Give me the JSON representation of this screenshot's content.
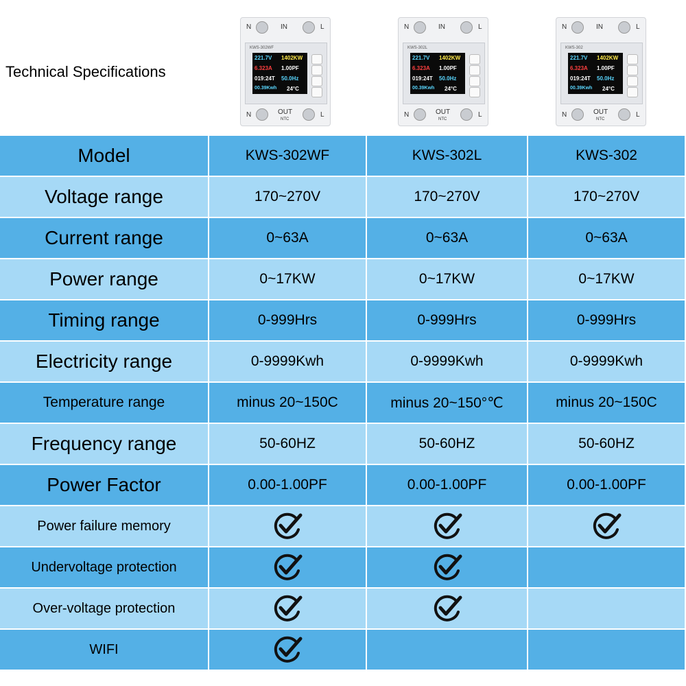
{
  "header": {
    "title": "Technical Specifications"
  },
  "devices": [
    {
      "model": "KWS-302WF"
    },
    {
      "model": "KWS-302L"
    },
    {
      "model": "KWS-302"
    }
  ],
  "device_labels": {
    "n": "N",
    "in": "IN",
    "l": "L",
    "out": "OUT",
    "ntc": "NTC"
  },
  "device_display": {
    "voltage": "221.7V",
    "power": "1402KW",
    "current": "6.323A",
    "pf": "1.00PF",
    "time": "019:24T",
    "freq": "50.0Hz",
    "energy": "00.39Kwh",
    "temp": "24°C"
  },
  "table": {
    "rows": [
      {
        "label": "Model",
        "cells": [
          "KWS-302WF",
          "KWS-302L",
          "KWS-302"
        ]
      },
      {
        "label": "Voltage range",
        "cells": [
          "170~270V",
          "170~270V",
          "170~270V"
        ]
      },
      {
        "label": "Current range",
        "cells": [
          "0~63A",
          "0~63A",
          "0~63A"
        ]
      },
      {
        "label": "Power range",
        "cells": [
          "0~17KW",
          "0~17KW",
          "0~17KW"
        ]
      },
      {
        "label": "Timing range",
        "cells": [
          "0-999Hrs",
          "0-999Hrs",
          "0-999Hrs"
        ]
      },
      {
        "label": "Electricity range",
        "cells": [
          "0-9999Kwh",
          "0-9999Kwh",
          "0-9999Kwh"
        ]
      },
      {
        "label": "Temperature range",
        "cells": [
          "minus 20~150C",
          "minus 20~150°℃",
          "minus 20~150C"
        ]
      },
      {
        "label": "Frequency range",
        "cells": [
          "50-60HZ",
          "50-60HZ",
          "50-60HZ"
        ]
      },
      {
        "label": "Power Factor",
        "cells": [
          "0.00-1.00PF",
          "0.00-1.00PF",
          "0.00-1.00PF"
        ]
      },
      {
        "label": "Power failure memory",
        "checks": [
          true,
          true,
          true
        ]
      },
      {
        "label": "Undervoltage protection",
        "checks": [
          true,
          true,
          false
        ]
      },
      {
        "label": "Over-voltage protection",
        "checks": [
          true,
          true,
          false
        ]
      },
      {
        "label": "WIFI",
        "checks": [
          true,
          false,
          false
        ]
      }
    ]
  }
}
